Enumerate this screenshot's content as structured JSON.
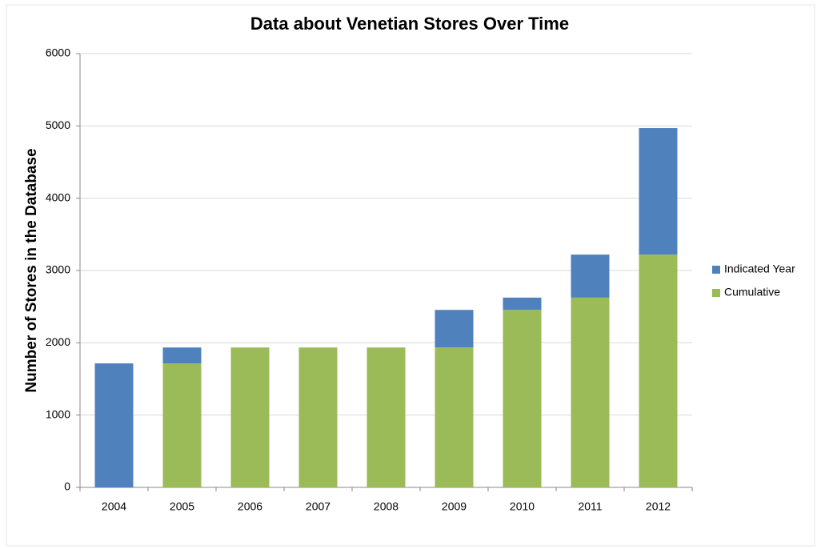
{
  "chart_data": {
    "type": "stacked_bar",
    "title": "Data about Venetian Stores Over Time",
    "y_label": "Number of Stores in the Database",
    "categories": [
      "2004",
      "2005",
      "2006",
      "2007",
      "2008",
      "2009",
      "2010",
      "2011",
      "2012"
    ],
    "series": [
      {
        "name": "Indicated Year",
        "color": "#4f81bd",
        "values": [
          1715,
          220,
          0,
          0,
          0,
          520,
          170,
          595,
          1750
        ]
      },
      {
        "name": "Cumulative",
        "color": "#9bbb59",
        "values": [
          0,
          1715,
          1935,
          1935,
          1935,
          1935,
          2455,
          2625,
          3220
        ]
      }
    ],
    "ylim": [
      0,
      6000
    ],
    "yticks": [
      0,
      1000,
      2000,
      3000,
      4000,
      5000,
      6000
    ],
    "grid": true,
    "legend": "right"
  }
}
